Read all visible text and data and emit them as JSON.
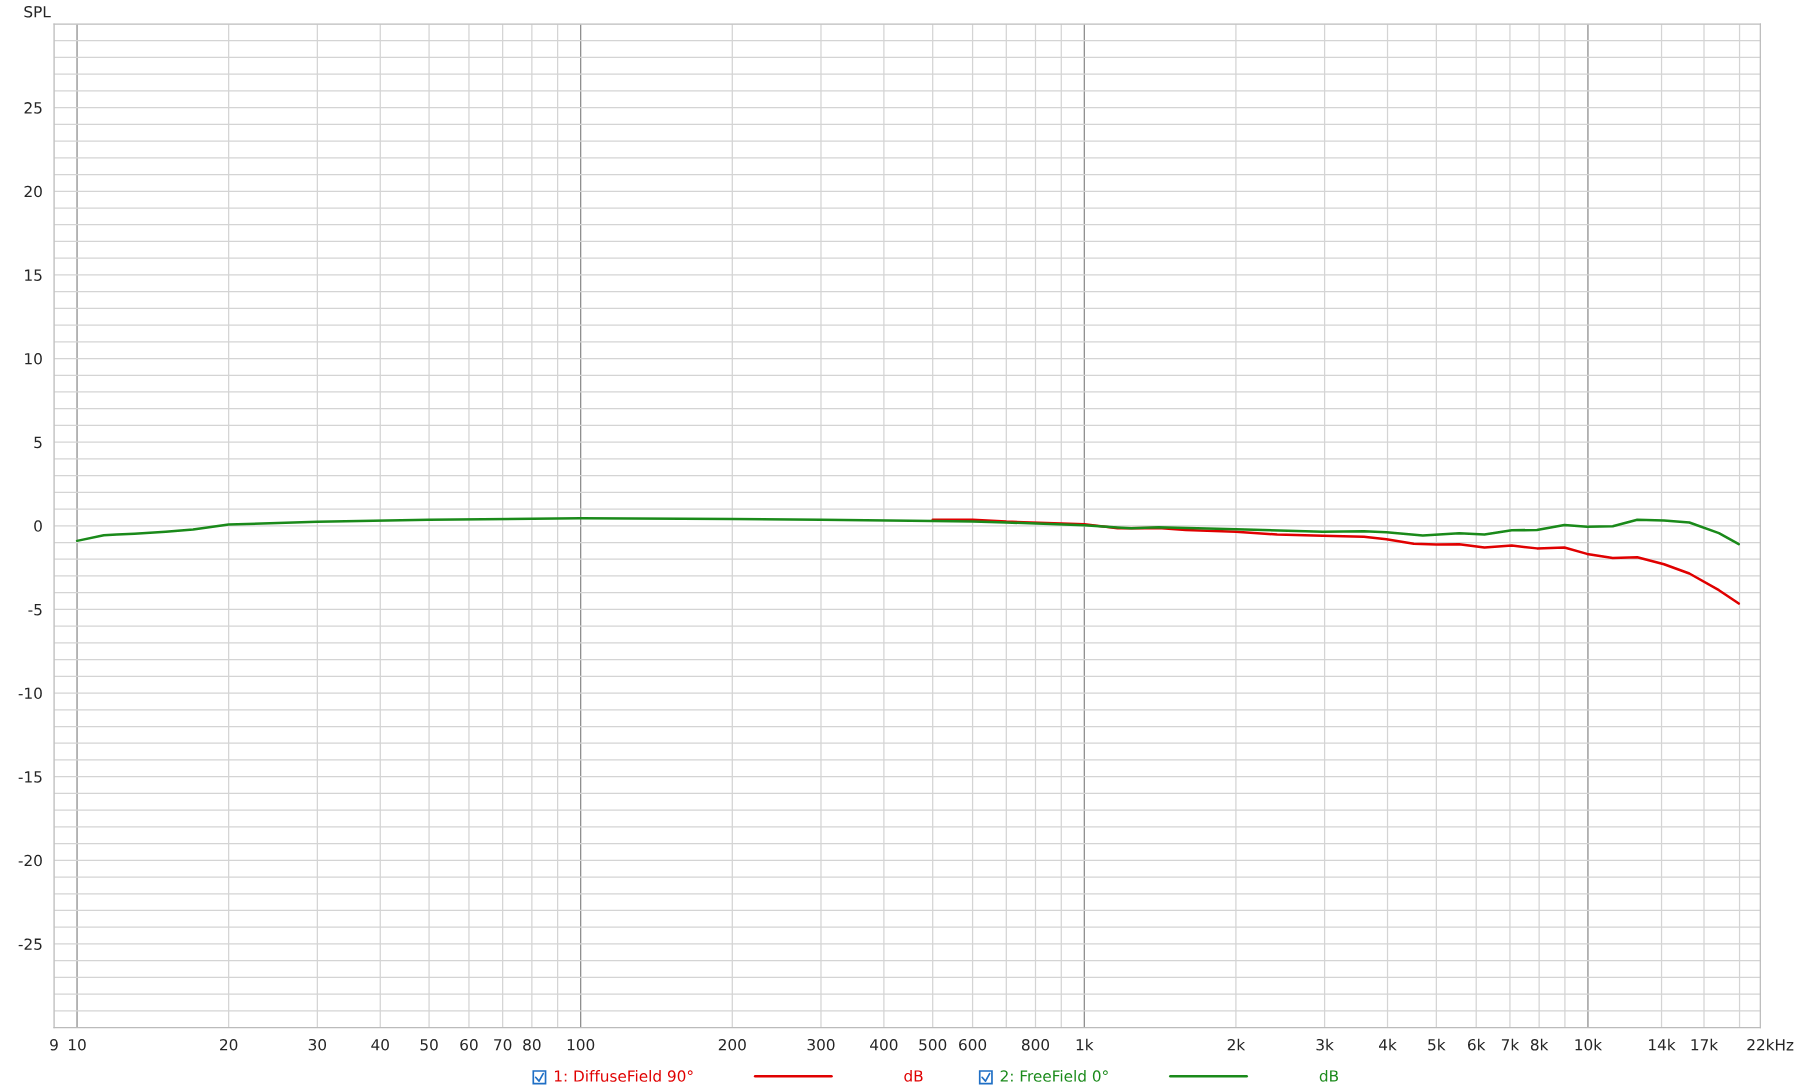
{
  "chart_data": {
    "type": "line",
    "ylabel": "SPL",
    "log": "x",
    "grid": true,
    "legend": "bottom",
    "line_style": "solid",
    "marker": "none",
    "xlim": [
      9,
      22000
    ],
    "ylim": [
      -30,
      30
    ],
    "xticks": [
      9,
      10,
      20,
      30,
      40,
      50,
      60,
      70,
      80,
      100,
      200,
      300,
      400,
      500,
      600,
      800,
      {
        "value": 1000,
        "label": "1k"
      },
      {
        "value": 2000,
        "label": "2k"
      },
      {
        "value": 3000,
        "label": "3k"
      },
      {
        "value": 4000,
        "label": "4k"
      },
      {
        "value": 5000,
        "label": "5k"
      },
      {
        "value": 6000,
        "label": "6k"
      },
      {
        "value": 7000,
        "label": "7k"
      },
      {
        "value": 8000,
        "label": "8k"
      },
      {
        "value": 10000,
        "label": "10k"
      },
      {
        "value": 14000,
        "label": "14k"
      },
      {
        "value": 17000,
        "label": "17k"
      },
      {
        "value": 22000,
        "label": "22k"
      }
    ],
    "xlabel": "Hz",
    "yticks": [
      -25,
      -20,
      -15,
      -10,
      -5,
      0,
      5,
      10,
      15,
      20,
      25
    ],
    "annotations": [
      "dB",
      "dB"
    ],
    "series": [
      {
        "name": "1: DiffuseField 90°",
        "color": "#e00000",
        "x": [
          500,
          600,
          700,
          1000,
          1164,
          1404,
          1590,
          2000,
          2415,
          2975,
          3590,
          3980,
          4510,
          5000,
          5550,
          6230,
          7060,
          7920,
          8980,
          9960,
          11200,
          12530,
          14160,
          15900,
          18200,
          19930
        ],
        "values": [
          0.36,
          0.36,
          0.25,
          0.1,
          -0.15,
          -0.13,
          -0.25,
          -0.35,
          -0.52,
          -0.6,
          -0.65,
          -0.8,
          -1.07,
          -1.12,
          -1.1,
          -1.3,
          -1.18,
          -1.35,
          -1.3,
          -1.68,
          -1.93,
          -1.88,
          -2.3,
          -2.85,
          -3.85,
          -4.65
        ]
      },
      {
        "name": "2: FreeField 0°",
        "color": "#1a8a1a",
        "x": [
          10,
          11.3,
          12,
          13,
          15,
          17,
          20,
          30,
          50,
          100,
          200,
          300,
          500,
          600,
          700,
          1000,
          1164,
          1239,
          1404,
          2000,
          2975,
          3590,
          3980,
          4700,
          5550,
          6230,
          7060,
          7920,
          8980,
          9960,
          11200,
          12530,
          14160,
          15900,
          18200,
          19930
        ],
        "values": [
          -0.9,
          -0.57,
          -0.52,
          -0.47,
          -0.35,
          -0.22,
          0.08,
          0.24,
          0.36,
          0.45,
          0.4,
          0.36,
          0.28,
          0.25,
          0.2,
          0.03,
          -0.1,
          -0.15,
          -0.08,
          -0.2,
          -0.35,
          -0.32,
          -0.38,
          -0.58,
          -0.44,
          -0.52,
          -0.27,
          -0.25,
          0.05,
          -0.06,
          -0.03,
          0.36,
          0.31,
          0.2,
          -0.44,
          -1.1
        ]
      }
    ]
  }
}
